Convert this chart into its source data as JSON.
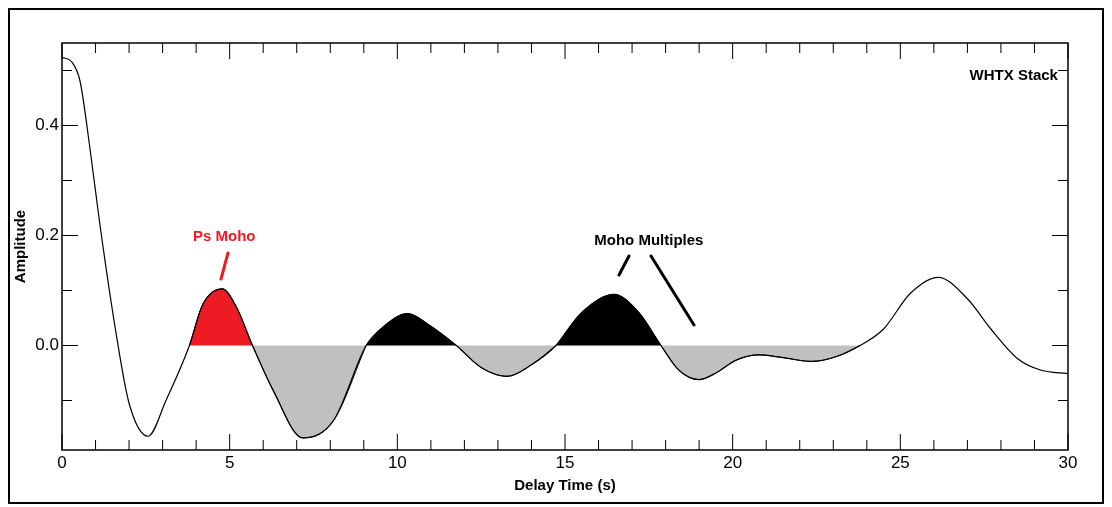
{
  "chart_data": {
    "type": "line",
    "xlabel": "Delay Time (s)",
    "ylabel": "Amplitude",
    "xlim": [
      0,
      30
    ],
    "xticks": [
      0,
      {
        "value": 1,
        "label": null
      },
      {
        "value": 2,
        "label": null
      },
      {
        "value": 3,
        "label": null
      },
      {
        "value": 4,
        "label": null
      },
      5,
      {
        "value": 6,
        "label": null
      },
      {
        "value": 7,
        "label": null
      },
      {
        "value": 8,
        "label": null
      },
      {
        "value": 9,
        "label": null
      },
      10,
      {
        "value": 11,
        "label": null
      },
      {
        "value": 12,
        "label": null
      },
      {
        "value": 13,
        "label": null
      },
      {
        "value": 14,
        "label": null
      },
      15,
      {
        "value": 16,
        "label": null
      },
      {
        "value": 17,
        "label": null
      },
      {
        "value": 18,
        "label": null
      },
      {
        "value": 19,
        "label": null
      },
      20,
      {
        "value": 21,
        "label": null
      },
      {
        "value": 22,
        "label": null
      },
      {
        "value": 23,
        "label": null
      },
      {
        "value": 24,
        "label": null
      },
      25,
      {
        "value": 26,
        "label": null
      },
      {
        "value": 27,
        "label": null
      },
      {
        "value": 28,
        "label": null
      },
      {
        "value": 29,
        "label": null
      },
      30
    ],
    "ylim": [
      -0.19,
      0.55
    ],
    "yticks": [
      {
        "value": -0.1,
        "label": null
      },
      {
        "value": 0,
        "label": "0.0"
      },
      {
        "value": 0.1,
        "label": null
      },
      {
        "value": 0.2,
        "label": "0.2"
      },
      {
        "value": 0.3,
        "label": null
      },
      {
        "value": 0.4,
        "label": "0.4"
      },
      {
        "value": 0.5,
        "label": null
      }
    ],
    "grid": false,
    "legend": false,
    "marker": "none",
    "line_style": "solid",
    "series": [
      {
        "color": "#000000",
        "x": [
          0,
          0.3,
          0.54,
          0.83,
          1.13,
          1.6,
          2.0,
          2.57,
          3.1,
          3.8,
          4.2,
          4.78,
          5.2,
          5.68,
          6.3,
          7.18,
          8.1,
          9.07,
          9.6,
          10.3,
          11.0,
          11.76,
          12.5,
          13.27,
          14.0,
          14.73,
          15.5,
          16.46,
          17.2,
          17.86,
          18.4,
          19.0,
          19.5,
          20.09,
          20.77,
          21.5,
          22.35,
          23.1,
          23.8,
          24.5,
          25.3,
          26.13,
          27.0,
          27.7,
          28.5,
          29.2,
          30
        ],
        "values": [
          0.524,
          0.515,
          0.48,
          0.36,
          0.22,
          0.027,
          -0.105,
          -0.165,
          -0.1,
          0,
          0.075,
          0.103,
          0.07,
          0,
          -0.082,
          -0.168,
          -0.136,
          0,
          0.035,
          0.058,
          0.035,
          0,
          -0.04,
          -0.056,
          -0.035,
          0,
          0.06,
          0.093,
          0.06,
          0,
          -0.045,
          -0.062,
          -0.05,
          -0.027,
          -0.017,
          -0.022,
          -0.029,
          -0.02,
          0,
          0.03,
          0.095,
          0.124,
          0.085,
          0.03,
          -0.024,
          -0.045,
          -0.051
        ]
      },
      {
        "type": "area",
        "color": "#ed1c24",
        "x": [
          3.8,
          4.2,
          4.78,
          5.2,
          5.68
        ],
        "values": [
          0,
          0.075,
          0.103,
          0.07,
          0
        ]
      },
      {
        "type": "area",
        "color": "#c0c0c0",
        "x": [
          5.68,
          6.3,
          7.18,
          8.1,
          9.07
        ],
        "values": [
          0,
          -0.082,
          -0.168,
          -0.136,
          0
        ]
      },
      {
        "type": "area",
        "color": "#000000",
        "x": [
          9.07,
          9.6,
          10.3,
          11.0,
          11.76
        ],
        "values": [
          0,
          0.035,
          0.058,
          0.035,
          0
        ]
      },
      {
        "type": "area",
        "color": "#c0c0c0",
        "x": [
          11.76,
          12.5,
          13.27,
          14.0,
          14.73
        ],
        "values": [
          0,
          -0.04,
          -0.056,
          -0.035,
          0
        ]
      },
      {
        "type": "area",
        "color": "#000000",
        "x": [
          14.73,
          15.5,
          16.46,
          17.2,
          17.86
        ],
        "values": [
          0,
          0.06,
          0.093,
          0.06,
          0
        ]
      },
      {
        "type": "area",
        "color": "#c0c0c0",
        "x": [
          17.86,
          18.4,
          19.0,
          19.5,
          20.09,
          20.77,
          21.5,
          22.35,
          23.1,
          23.8
        ],
        "values": [
          0,
          -0.045,
          -0.062,
          -0.05,
          -0.027,
          -0.017,
          -0.022,
          -0.029,
          -0.02,
          0
        ]
      }
    ],
    "annotations": [
      {
        "text": "Ps Moho",
        "x": 4.78,
        "y": 0.103
      },
      "Moho Multiples",
      "WHTX Stack"
    ]
  }
}
